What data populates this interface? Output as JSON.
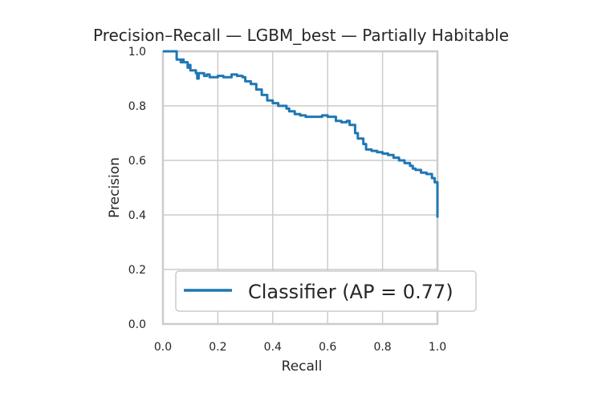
{
  "chart_data": {
    "type": "line",
    "title": "Precision–Recall — LGBM_best — Partially Habitable",
    "xlabel": "Recall",
    "ylabel": "Precision",
    "xlim": [
      0.0,
      1.0
    ],
    "ylim": [
      0.0,
      1.0
    ],
    "x_ticks": [
      0.0,
      0.2,
      0.4,
      0.6,
      0.8,
      1.0
    ],
    "y_ticks": [
      0.0,
      0.2,
      0.4,
      0.6,
      0.8,
      1.0
    ],
    "x_tick_labels": [
      "0.0",
      "0.2",
      "0.4",
      "0.6",
      "0.8",
      "1.0"
    ],
    "y_tick_labels": [
      "0.0",
      "0.2",
      "0.4",
      "0.6",
      "0.8",
      "1.0"
    ],
    "grid": true,
    "legend_position": "lower-right",
    "series": [
      {
        "name": "Classifier (AP = 0.77)",
        "color": "#1f77b4",
        "x": [
          0.0,
          0.05,
          0.05,
          0.065,
          0.07,
          0.075,
          0.09,
          0.095,
          0.1,
          0.12,
          0.125,
          0.13,
          0.15,
          0.16,
          0.17,
          0.2,
          0.22,
          0.25,
          0.27,
          0.29,
          0.3,
          0.32,
          0.34,
          0.36,
          0.38,
          0.4,
          0.42,
          0.45,
          0.46,
          0.48,
          0.5,
          0.52,
          0.55,
          0.58,
          0.6,
          0.62,
          0.63,
          0.65,
          0.67,
          0.68,
          0.7,
          0.71,
          0.73,
          0.74,
          0.76,
          0.78,
          0.8,
          0.82,
          0.84,
          0.86,
          0.87,
          0.88,
          0.9,
          0.91,
          0.92,
          0.94,
          0.96,
          0.98,
          0.99,
          1.0,
          1.0
        ],
        "y": [
          1.0,
          1.0,
          0.97,
          0.96,
          0.97,
          0.96,
          0.94,
          0.95,
          0.93,
          0.92,
          0.9,
          0.92,
          0.91,
          0.915,
          0.905,
          0.91,
          0.905,
          0.915,
          0.91,
          0.905,
          0.89,
          0.88,
          0.86,
          0.84,
          0.82,
          0.81,
          0.8,
          0.79,
          0.78,
          0.77,
          0.765,
          0.76,
          0.76,
          0.765,
          0.76,
          0.76,
          0.745,
          0.74,
          0.745,
          0.73,
          0.7,
          0.68,
          0.66,
          0.64,
          0.635,
          0.63,
          0.625,
          0.62,
          0.61,
          0.6,
          0.6,
          0.59,
          0.58,
          0.57,
          0.565,
          0.555,
          0.55,
          0.535,
          0.52,
          0.5,
          0.39
        ]
      }
    ]
  }
}
